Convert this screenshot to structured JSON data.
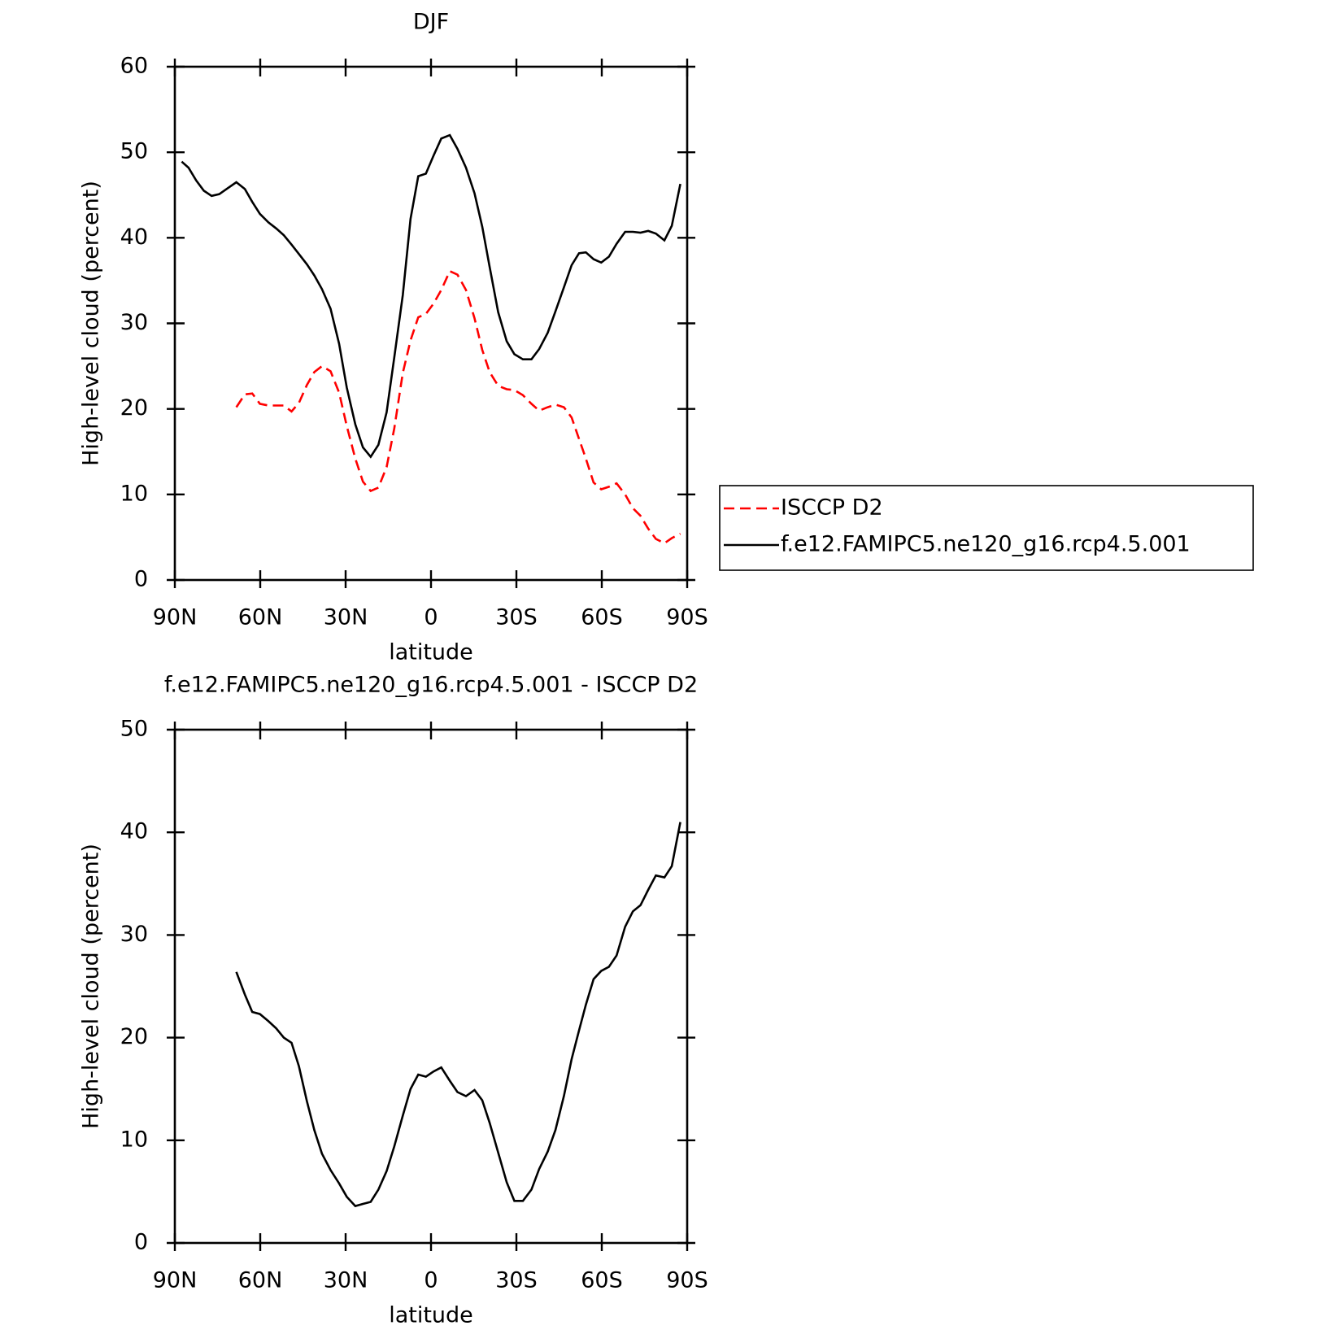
{
  "chart_data": [
    {
      "type": "line",
      "title": "DJF",
      "xlabel": "latitude",
      "ylabel": "High-level cloud (percent)",
      "x": [
        87.6,
        85.2,
        82.5,
        79.8,
        77.1,
        74.4,
        71.4,
        68.4,
        65.4,
        62.8,
        60.1,
        57.1,
        54.4,
        51.7,
        49.0,
        46.4,
        43.6,
        41.0,
        38.3,
        35.3,
        32.3,
        29.6,
        26.6,
        23.9,
        21.2,
        18.5,
        15.6,
        12.9,
        9.9,
        7.2,
        4.5,
        1.8,
        -0.9,
        -3.6,
        -6.6,
        -9.3,
        -12.3,
        -15.3,
        -18.0,
        -20.6,
        -23.6,
        -26.6,
        -29.3,
        -32.3,
        -35.3,
        -38.0,
        -41.0,
        -43.7,
        -46.7,
        -49.4,
        -52.0,
        -54.4,
        -57.1,
        -59.8,
        -62.5,
        -65.2,
        -68.2,
        -70.9,
        -73.6,
        -76.3,
        -79.0,
        -82.0,
        -84.6,
        -87.6
      ],
      "series": [
        {
          "name": "ISCCP D2",
          "color": "#ff0000",
          "linestyle": "dashed",
          "values": [
            null,
            null,
            null,
            null,
            null,
            null,
            null,
            20.2,
            21.7,
            21.8,
            20.6,
            20.4,
            20.4,
            20.4,
            19.7,
            20.7,
            22.8,
            24.3,
            25.0,
            24.4,
            21.9,
            18.0,
            14.2,
            11.5,
            10.4,
            10.8,
            13.2,
            17.7,
            24.2,
            28.0,
            30.7,
            31.1,
            32.3,
            33.9,
            36.1,
            35.7,
            33.9,
            30.6,
            26.9,
            24.3,
            22.7,
            22.3,
            22.2,
            21.6,
            20.6,
            19.8,
            20.2,
            20.5,
            20.2,
            19.0,
            16.5,
            14.2,
            11.4,
            10.6,
            10.9,
            11.3,
            10.0,
            8.4,
            7.5,
            6.0,
            4.8,
            4.3,
            4.9,
            5.4
          ]
        },
        {
          "name": "f.e12.FAMIPC5.ne120_g16.rcp4.5.001",
          "color": "#000000",
          "linestyle": "solid",
          "values": [
            48.9,
            48.2,
            46.7,
            45.5,
            44.9,
            45.1,
            45.8,
            46.5,
            45.7,
            44.2,
            42.8,
            41.8,
            41.1,
            40.3,
            39.2,
            38.1,
            36.9,
            35.6,
            34.0,
            31.7,
            27.6,
            22.5,
            18.2,
            15.5,
            14.4,
            15.8,
            19.6,
            26.0,
            33.3,
            42.2,
            47.2,
            47.5,
            49.6,
            51.6,
            52.0,
            50.4,
            48.2,
            45.2,
            41.3,
            36.6,
            31.3,
            27.9,
            26.4,
            25.8,
            25.8,
            27.0,
            28.9,
            31.4,
            34.2,
            36.8,
            38.2,
            38.3,
            37.5,
            37.1,
            37.8,
            39.3,
            40.7,
            40.7,
            40.6,
            40.8,
            40.5,
            39.7,
            41.4,
            46.3
          ]
        }
      ],
      "xlim": [
        90,
        -90
      ],
      "xticks": [
        {
          "value": 90,
          "label": "90N"
        },
        {
          "value": 60,
          "label": "60N"
        },
        {
          "value": 30,
          "label": "30N"
        },
        0,
        {
          "value": -30,
          "label": "30S"
        },
        {
          "value": -60,
          "label": "60S"
        },
        {
          "value": -90,
          "label": "90S"
        }
      ],
      "ylim": [
        0,
        60
      ],
      "yticks": [
        0,
        10,
        20,
        30,
        40,
        50,
        60
      ],
      "legend": "right"
    },
    {
      "type": "line",
      "title": "f.e12.FAMIPC5.ne120_g16.rcp4.5.001 - ISCCP D2",
      "xlabel": "latitude",
      "ylabel": "High-level cloud (percent)",
      "x": [
        68.4,
        65.4,
        62.8,
        60.1,
        57.1,
        54.4,
        51.7,
        49.0,
        46.4,
        43.6,
        41.0,
        38.3,
        35.3,
        32.3,
        29.6,
        26.6,
        23.9,
        21.2,
        18.5,
        15.6,
        12.9,
        9.9,
        7.2,
        4.5,
        1.8,
        -0.9,
        -3.6,
        -6.6,
        -9.3,
        -12.3,
        -15.3,
        -18.0,
        -20.6,
        -23.6,
        -26.6,
        -29.3,
        -32.3,
        -35.3,
        -38.0,
        -41.0,
        -43.7,
        -46.7,
        -49.4,
        -52.0,
        -54.4,
        -57.1,
        -59.8,
        -62.5,
        -65.2,
        -68.2,
        -70.9,
        -73.6,
        -76.3,
        -79.0,
        -82.0,
        -84.6,
        -87.6
      ],
      "series": [
        {
          "color": "#000000",
          "linestyle": "solid",
          "values": [
            26.4,
            24.2,
            22.5,
            22.3,
            21.6,
            20.9,
            20.0,
            19.5,
            17.2,
            13.8,
            11.0,
            8.7,
            7.1,
            5.8,
            4.5,
            3.6,
            3.8,
            4.0,
            5.2,
            7.0,
            9.4,
            12.4,
            15.0,
            16.4,
            16.2,
            16.7,
            17.1,
            15.8,
            14.7,
            14.3,
            14.9,
            13.9,
            11.7,
            8.8,
            5.9,
            4.1,
            4.1,
            5.2,
            7.2,
            8.9,
            11.0,
            14.3,
            17.9,
            20.7,
            23.2,
            25.7,
            26.5,
            26.9,
            28.0,
            30.8,
            32.3,
            32.9,
            34.4,
            35.8,
            35.6,
            36.7,
            41.0
          ]
        }
      ],
      "xlim": [
        90,
        -90
      ],
      "xticks": [
        {
          "value": 90,
          "label": "90N"
        },
        {
          "value": 60,
          "label": "60N"
        },
        {
          "value": 30,
          "label": "30N"
        },
        0,
        {
          "value": -30,
          "label": "30S"
        },
        {
          "value": -60,
          "label": "60S"
        },
        {
          "value": -90,
          "label": "90S"
        }
      ],
      "ylim": [
        0,
        50
      ],
      "yticks": [
        0,
        10,
        20,
        30,
        40,
        50
      ]
    }
  ]
}
